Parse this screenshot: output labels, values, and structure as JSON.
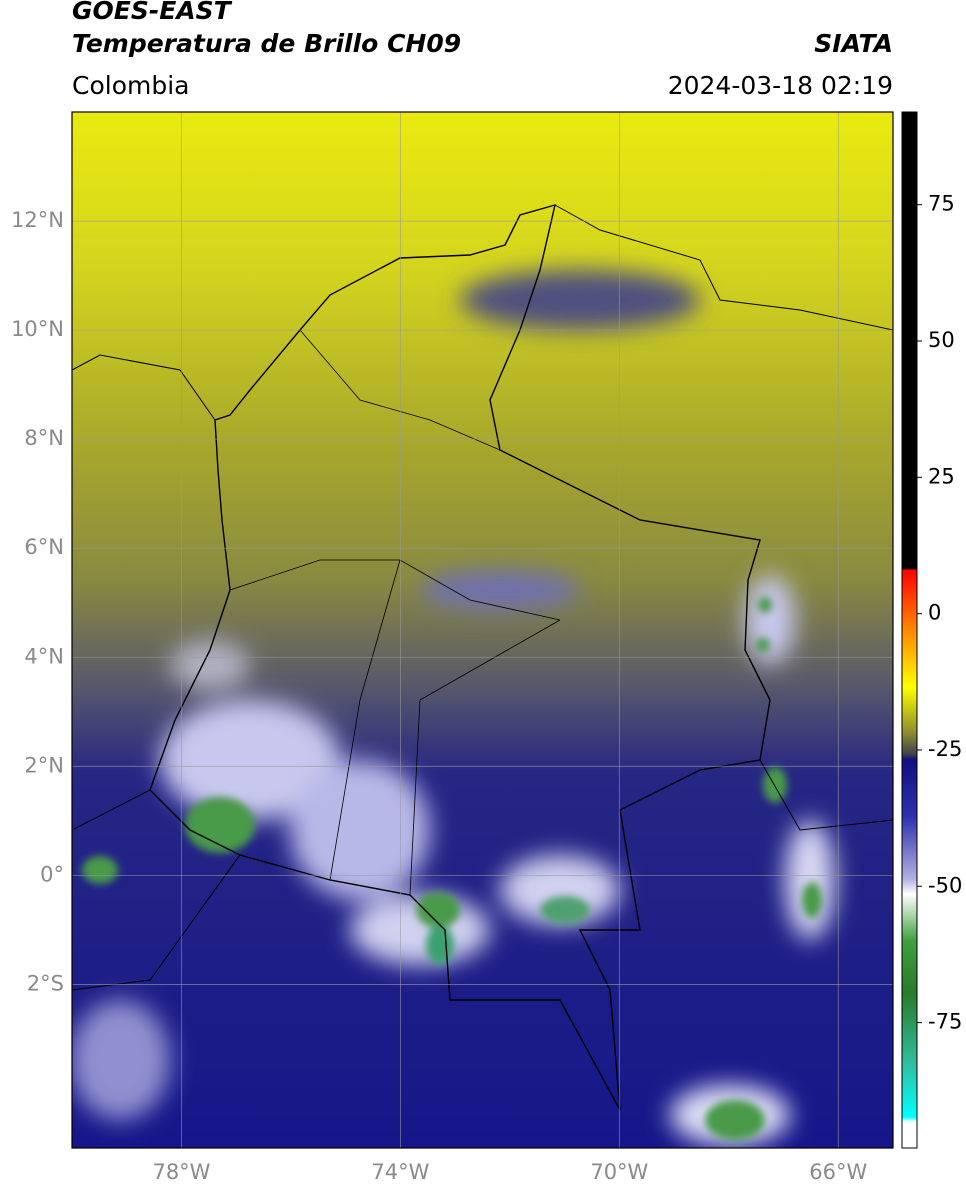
{
  "header": {
    "title": "GOES-EAST",
    "subtitle": "Temperatura de Brillo CH09",
    "region": "Colombia",
    "source": "SIATA",
    "datetime": "2024-03-18 02:19"
  },
  "map": {
    "lon_range": [
      -80,
      -65
    ],
    "lat_range": [
      -5,
      14
    ],
    "lat_ticks": [
      {
        "value": 12,
        "label": "12°N"
      },
      {
        "value": 10,
        "label": "10°N"
      },
      {
        "value": 8,
        "label": "8°N"
      },
      {
        "value": 6,
        "label": "6°N"
      },
      {
        "value": 4,
        "label": "4°N"
      },
      {
        "value": 2,
        "label": "2°N"
      },
      {
        "value": 0,
        "label": "0°"
      },
      {
        "value": -2,
        "label": "2°S"
      }
    ],
    "lon_ticks": [
      {
        "value": -78,
        "label": "78°W"
      },
      {
        "value": -74,
        "label": "74°W"
      },
      {
        "value": -70,
        "label": "70°W"
      },
      {
        "value": -66,
        "label": "66°W"
      }
    ]
  },
  "colorbar": {
    "range": [
      -98,
      92
    ],
    "ticks": [
      75,
      50,
      25,
      0,
      -25,
      -50,
      -75
    ]
  }
}
